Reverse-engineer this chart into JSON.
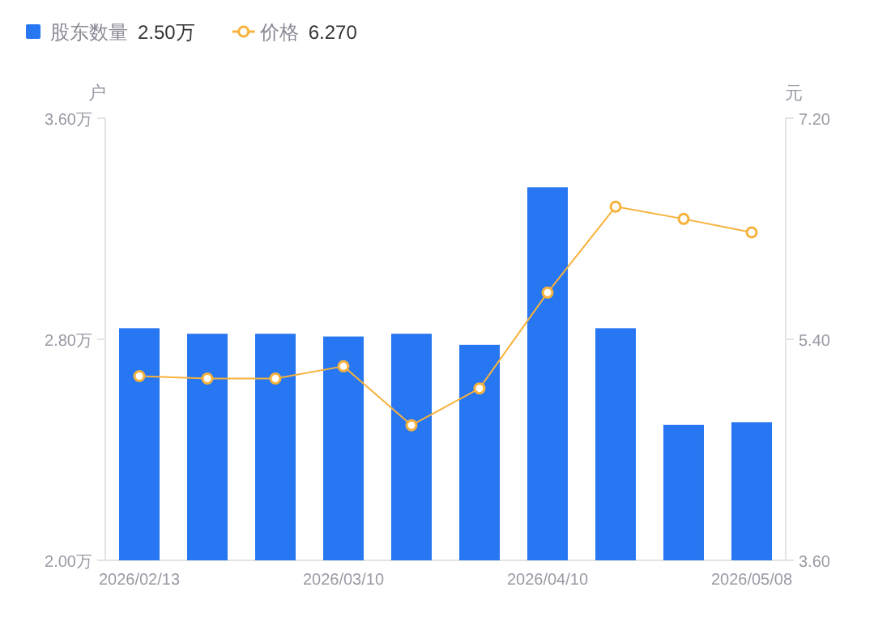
{
  "chart_data": {
    "type": "bar",
    "categories": [
      "2026/02/13",
      null,
      null,
      "2026/03/10",
      null,
      null,
      "2026/04/10",
      null,
      null,
      "2026/05/08"
    ],
    "series": [
      {
        "name": "股东数量 2.50万",
        "color": "#2776f2",
        "values": [
          2.84,
          2.82,
          2.82,
          2.81,
          2.82,
          2.78,
          3.35,
          2.84,
          2.49,
          2.5
        ]
      },
      {
        "name": "价格 6.270",
        "type": "line",
        "axis": "y2",
        "color": "#f7b23b",
        "marker": "circle",
        "values": [
          5.1,
          5.08,
          5.08,
          5.18,
          4.7,
          5.0,
          5.78,
          6.48,
          6.38,
          6.27
        ]
      }
    ],
    "ylabel": "户",
    "y2label": "元",
    "ylim": [
      2.0,
      3.6
    ],
    "yticks": [
      {
        "value": 2.0,
        "label": "2.00万"
      },
      {
        "value": 2.8,
        "label": "2.80万"
      },
      {
        "value": 3.6,
        "label": "3.60万"
      }
    ],
    "y2lim": [
      3.6,
      7.2
    ],
    "y2ticks": [
      {
        "value": 3.6,
        "label": "3.60"
      },
      {
        "value": 5.4,
        "label": "5.40"
      },
      {
        "value": 7.2,
        "label": "7.20"
      }
    ],
    "legend": "top left"
  }
}
